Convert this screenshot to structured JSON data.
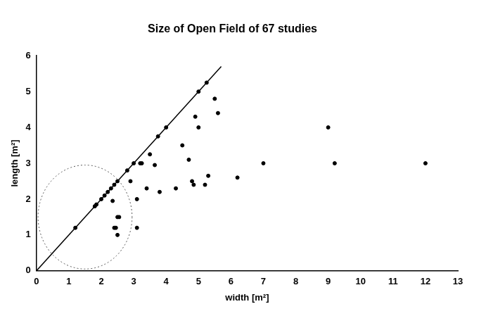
{
  "chart_data": {
    "type": "scatter",
    "title": "Size of Open Field of 67 studies",
    "x_label": "width [m²]",
    "y_label": "length [m²]",
    "x": [
      1.2,
      1.8,
      1.85,
      2.0,
      2.1,
      2.2,
      2.3,
      2.4,
      2.5,
      2.8,
      3.0,
      3.2,
      3.25,
      3.5,
      3.75,
      4.0,
      5.0,
      5.25,
      4.9,
      5.0,
      5.5,
      5.6,
      4.5,
      4.7,
      3.65,
      2.9,
      3.4,
      3.1,
      3.8,
      4.3,
      4.8,
      4.85,
      5.2,
      5.3,
      6.2,
      7.0,
      9.0,
      9.2,
      12.0,
      2.35,
      2.5,
      2.55,
      2.4,
      2.45,
      2.5,
      3.1
    ],
    "values": [
      1.2,
      1.8,
      1.85,
      2.0,
      2.1,
      2.2,
      2.3,
      2.4,
      2.5,
      2.8,
      3.0,
      3.0,
      3.0,
      3.25,
      3.75,
      4.0,
      5.0,
      5.25,
      4.3,
      4.0,
      4.8,
      4.4,
      3.5,
      3.1,
      2.95,
      2.5,
      2.3,
      2.0,
      2.2,
      2.3,
      2.5,
      2.4,
      2.4,
      2.65,
      2.6,
      3.0,
      4.0,
      3.0,
      3.0,
      1.95,
      1.5,
      1.5,
      1.2,
      1.2,
      1.0,
      1.2
    ],
    "color": "#000000",
    "marker": "circle",
    "reference_line": {
      "x": [
        0,
        5.7
      ],
      "y": [
        0,
        5.7
      ],
      "color": "#000000",
      "line_style": "solid"
    },
    "circle": {
      "center": [
        1.5,
        1.5
      ],
      "radius": 1.45,
      "color": "#555555",
      "line_style": "dotted"
    },
    "xlim": [
      0,
      13
    ],
    "xticks": [
      0,
      1,
      2,
      3,
      4,
      5,
      6,
      7,
      8,
      9,
      10,
      11,
      12,
      13
    ],
    "ylim": [
      0,
      6
    ],
    "yticks": [
      0,
      1,
      2,
      3,
      4,
      5,
      6
    ],
    "grid": false
  }
}
